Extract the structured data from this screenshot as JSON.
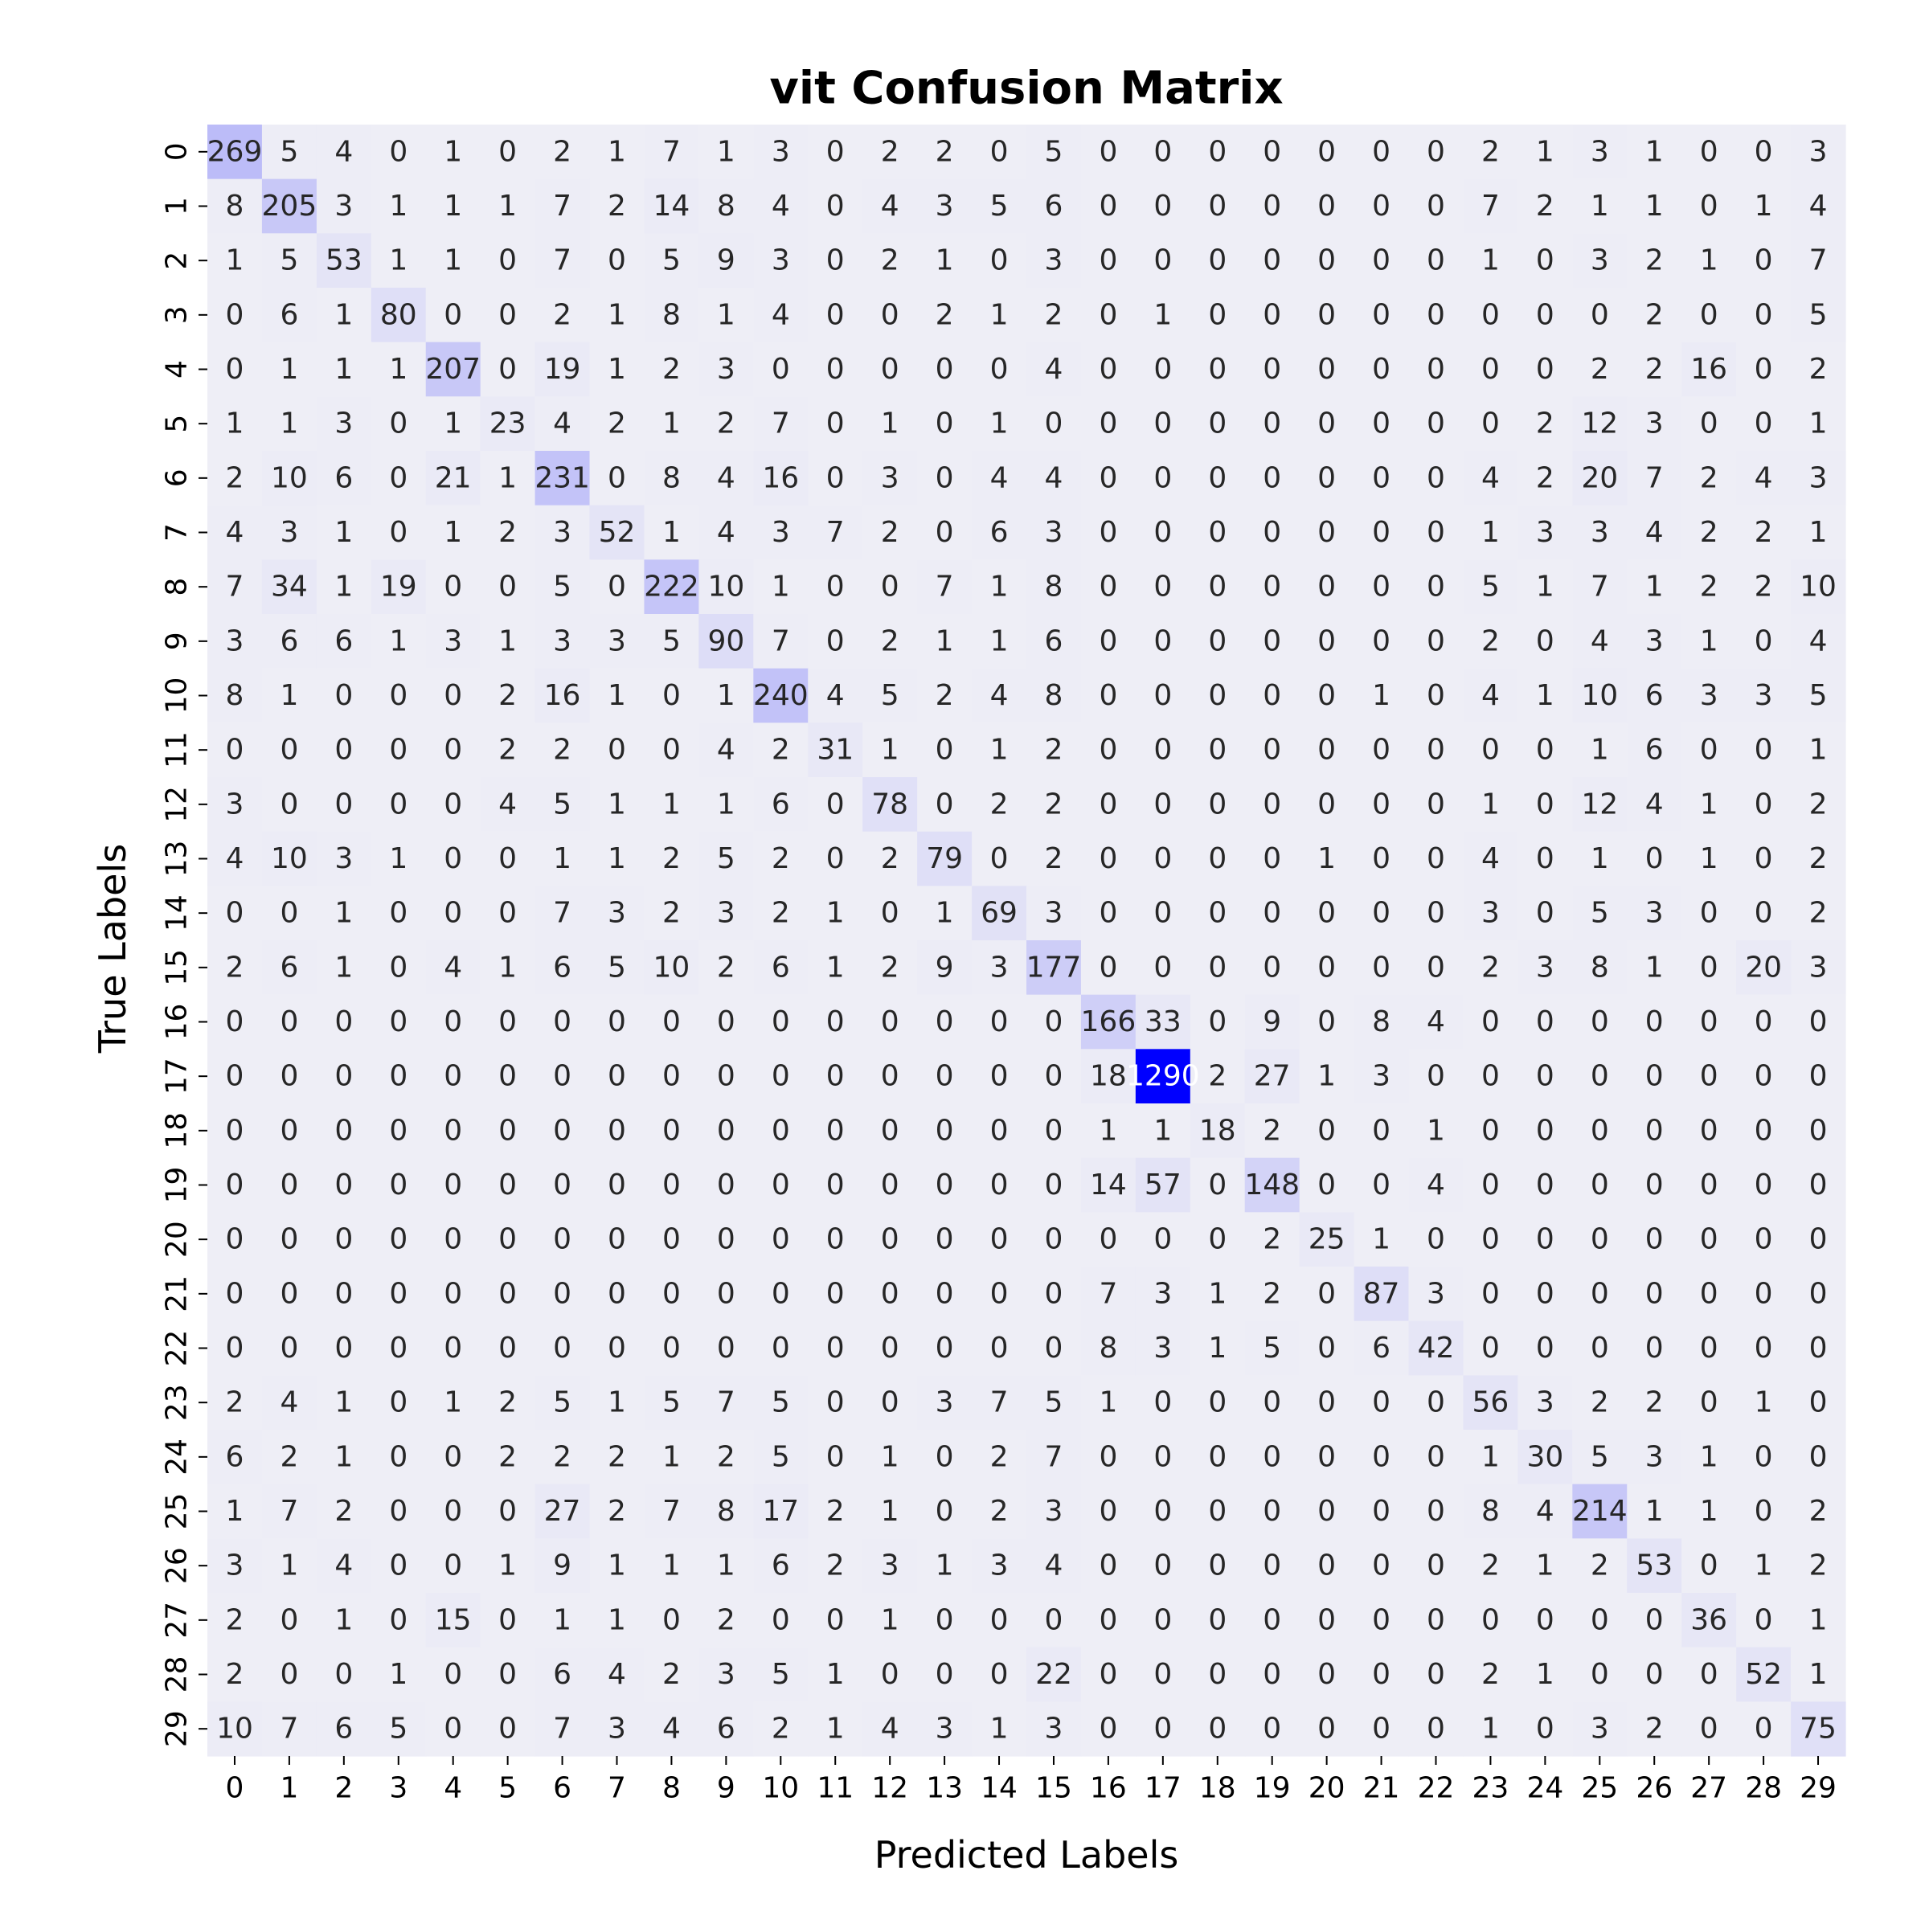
{
  "chart_data": {
    "type": "heatmap",
    "title": "vit Confusion Matrix",
    "xlabel": "Predicted Labels",
    "ylabel": "True Labels",
    "x_ticks": [
      "0",
      "1",
      "2",
      "3",
      "4",
      "5",
      "6",
      "7",
      "8",
      "9",
      "10",
      "11",
      "12",
      "13",
      "14",
      "15",
      "16",
      "17",
      "18",
      "19",
      "20",
      "21",
      "22",
      "23",
      "24",
      "25",
      "26",
      "27",
      "28",
      "29"
    ],
    "y_ticks": [
      "0",
      "1",
      "2",
      "3",
      "4",
      "5",
      "6",
      "7",
      "8",
      "9",
      "10",
      "11",
      "12",
      "13",
      "14",
      "15",
      "16",
      "17",
      "18",
      "19",
      "20",
      "21",
      "22",
      "23",
      "24",
      "25",
      "26",
      "27",
      "28",
      "29"
    ],
    "colormap": {
      "low": "#eeeef6",
      "high": "#0000ff"
    },
    "value_range": [
      0,
      1290
    ],
    "colorbar": false,
    "grid": false,
    "matrix": [
      [
        269,
        5,
        4,
        0,
        1,
        0,
        2,
        1,
        7,
        1,
        3,
        0,
        2,
        2,
        0,
        5,
        0,
        0,
        0,
        0,
        0,
        0,
        0,
        2,
        1,
        3,
        1,
        0,
        0,
        3
      ],
      [
        8,
        205,
        3,
        1,
        1,
        1,
        7,
        2,
        14,
        8,
        4,
        0,
        4,
        3,
        5,
        6,
        0,
        0,
        0,
        0,
        0,
        0,
        0,
        7,
        2,
        1,
        1,
        0,
        1,
        4
      ],
      [
        1,
        5,
        53,
        1,
        1,
        0,
        7,
        0,
        5,
        9,
        3,
        0,
        2,
        1,
        0,
        3,
        0,
        0,
        0,
        0,
        0,
        0,
        0,
        1,
        0,
        3,
        2,
        1,
        0,
        7
      ],
      [
        0,
        6,
        1,
        80,
        0,
        0,
        2,
        1,
        8,
        1,
        4,
        0,
        0,
        2,
        1,
        2,
        0,
        1,
        0,
        0,
        0,
        0,
        0,
        0,
        0,
        0,
        2,
        0,
        0,
        5
      ],
      [
        0,
        1,
        1,
        1,
        207,
        0,
        19,
        1,
        2,
        3,
        0,
        0,
        0,
        0,
        0,
        4,
        0,
        0,
        0,
        0,
        0,
        0,
        0,
        0,
        0,
        2,
        2,
        16,
        0,
        2
      ],
      [
        1,
        1,
        3,
        0,
        1,
        23,
        4,
        2,
        1,
        2,
        7,
        0,
        1,
        0,
        1,
        0,
        0,
        0,
        0,
        0,
        0,
        0,
        0,
        0,
        2,
        12,
        3,
        0,
        0,
        1
      ],
      [
        2,
        10,
        6,
        0,
        21,
        1,
        231,
        0,
        8,
        4,
        16,
        0,
        3,
        0,
        4,
        4,
        0,
        0,
        0,
        0,
        0,
        0,
        0,
        4,
        2,
        20,
        7,
        2,
        4,
        3
      ],
      [
        4,
        3,
        1,
        0,
        1,
        2,
        3,
        52,
        1,
        4,
        3,
        7,
        2,
        0,
        6,
        3,
        0,
        0,
        0,
        0,
        0,
        0,
        0,
        1,
        3,
        3,
        4,
        2,
        2,
        1
      ],
      [
        7,
        34,
        1,
        19,
        0,
        0,
        5,
        0,
        222,
        10,
        1,
        0,
        0,
        7,
        1,
        8,
        0,
        0,
        0,
        0,
        0,
        0,
        0,
        5,
        1,
        7,
        1,
        2,
        2,
        10
      ],
      [
        3,
        6,
        6,
        1,
        3,
        1,
        3,
        3,
        5,
        90,
        7,
        0,
        2,
        1,
        1,
        6,
        0,
        0,
        0,
        0,
        0,
        0,
        0,
        2,
        0,
        4,
        3,
        1,
        0,
        4
      ],
      [
        8,
        1,
        0,
        0,
        0,
        2,
        16,
        1,
        0,
        1,
        240,
        4,
        5,
        2,
        4,
        8,
        0,
        0,
        0,
        0,
        0,
        1,
        0,
        4,
        1,
        10,
        6,
        3,
        3,
        5
      ],
      [
        0,
        0,
        0,
        0,
        0,
        2,
        2,
        0,
        0,
        4,
        2,
        31,
        1,
        0,
        1,
        2,
        0,
        0,
        0,
        0,
        0,
        0,
        0,
        0,
        0,
        1,
        6,
        0,
        0,
        1
      ],
      [
        3,
        0,
        0,
        0,
        0,
        4,
        5,
        1,
        1,
        1,
        6,
        0,
        78,
        0,
        2,
        2,
        0,
        0,
        0,
        0,
        0,
        0,
        0,
        1,
        0,
        12,
        4,
        1,
        0,
        2
      ],
      [
        4,
        10,
        3,
        1,
        0,
        0,
        1,
        1,
        2,
        5,
        2,
        0,
        2,
        79,
        0,
        2,
        0,
        0,
        0,
        0,
        1,
        0,
        0,
        4,
        0,
        1,
        0,
        1,
        0,
        2
      ],
      [
        0,
        0,
        1,
        0,
        0,
        0,
        7,
        3,
        2,
        3,
        2,
        1,
        0,
        1,
        69,
        3,
        0,
        0,
        0,
        0,
        0,
        0,
        0,
        3,
        0,
        5,
        3,
        0,
        0,
        2
      ],
      [
        2,
        6,
        1,
        0,
        4,
        1,
        6,
        5,
        10,
        2,
        6,
        1,
        2,
        9,
        3,
        177,
        0,
        0,
        0,
        0,
        0,
        0,
        0,
        2,
        3,
        8,
        1,
        0,
        20,
        3
      ],
      [
        0,
        0,
        0,
        0,
        0,
        0,
        0,
        0,
        0,
        0,
        0,
        0,
        0,
        0,
        0,
        0,
        166,
        33,
        0,
        9,
        0,
        8,
        4,
        0,
        0,
        0,
        0,
        0,
        0,
        0
      ],
      [
        0,
        0,
        0,
        0,
        0,
        0,
        0,
        0,
        0,
        0,
        0,
        0,
        0,
        0,
        0,
        0,
        18,
        1290,
        2,
        27,
        1,
        3,
        0,
        0,
        0,
        0,
        0,
        0,
        0,
        0
      ],
      [
        0,
        0,
        0,
        0,
        0,
        0,
        0,
        0,
        0,
        0,
        0,
        0,
        0,
        0,
        0,
        0,
        1,
        1,
        18,
        2,
        0,
        0,
        1,
        0,
        0,
        0,
        0,
        0,
        0,
        0
      ],
      [
        0,
        0,
        0,
        0,
        0,
        0,
        0,
        0,
        0,
        0,
        0,
        0,
        0,
        0,
        0,
        0,
        14,
        57,
        0,
        148,
        0,
        0,
        4,
        0,
        0,
        0,
        0,
        0,
        0,
        0
      ],
      [
        0,
        0,
        0,
        0,
        0,
        0,
        0,
        0,
        0,
        0,
        0,
        0,
        0,
        0,
        0,
        0,
        0,
        0,
        0,
        2,
        25,
        1,
        0,
        0,
        0,
        0,
        0,
        0,
        0,
        0
      ],
      [
        0,
        0,
        0,
        0,
        0,
        0,
        0,
        0,
        0,
        0,
        0,
        0,
        0,
        0,
        0,
        0,
        7,
        3,
        1,
        2,
        0,
        87,
        3,
        0,
        0,
        0,
        0,
        0,
        0,
        0
      ],
      [
        0,
        0,
        0,
        0,
        0,
        0,
        0,
        0,
        0,
        0,
        0,
        0,
        0,
        0,
        0,
        0,
        8,
        3,
        1,
        5,
        0,
        6,
        42,
        0,
        0,
        0,
        0,
        0,
        0,
        0
      ],
      [
        2,
        4,
        1,
        0,
        1,
        2,
        5,
        1,
        5,
        7,
        5,
        0,
        0,
        3,
        7,
        5,
        1,
        0,
        0,
        0,
        0,
        0,
        0,
        56,
        3,
        2,
        2,
        0,
        1,
        0
      ],
      [
        6,
        2,
        1,
        0,
        0,
        2,
        2,
        2,
        1,
        2,
        5,
        0,
        1,
        0,
        2,
        7,
        0,
        0,
        0,
        0,
        0,
        0,
        0,
        1,
        30,
        5,
        3,
        1,
        0,
        0
      ],
      [
        1,
        7,
        2,
        0,
        0,
        0,
        27,
        2,
        7,
        8,
        17,
        2,
        1,
        0,
        2,
        3,
        0,
        0,
        0,
        0,
        0,
        0,
        0,
        8,
        4,
        214,
        1,
        1,
        0,
        2
      ],
      [
        3,
        1,
        4,
        0,
        0,
        1,
        9,
        1,
        1,
        1,
        6,
        2,
        3,
        1,
        3,
        4,
        0,
        0,
        0,
        0,
        0,
        0,
        0,
        2,
        1,
        2,
        53,
        0,
        1,
        2
      ],
      [
        2,
        0,
        1,
        0,
        15,
        0,
        1,
        1,
        0,
        2,
        0,
        0,
        1,
        0,
        0,
        0,
        0,
        0,
        0,
        0,
        0,
        0,
        0,
        0,
        0,
        0,
        0,
        36,
        0,
        1
      ],
      [
        2,
        0,
        0,
        1,
        0,
        0,
        6,
        4,
        2,
        3,
        5,
        1,
        0,
        0,
        0,
        22,
        0,
        0,
        0,
        0,
        0,
        0,
        0,
        2,
        1,
        0,
        0,
        0,
        52,
        1
      ],
      [
        10,
        7,
        6,
        5,
        0,
        0,
        7,
        3,
        4,
        6,
        2,
        1,
        4,
        3,
        1,
        3,
        0,
        0,
        0,
        0,
        0,
        0,
        0,
        1,
        0,
        3,
        2,
        0,
        0,
        75
      ]
    ]
  }
}
